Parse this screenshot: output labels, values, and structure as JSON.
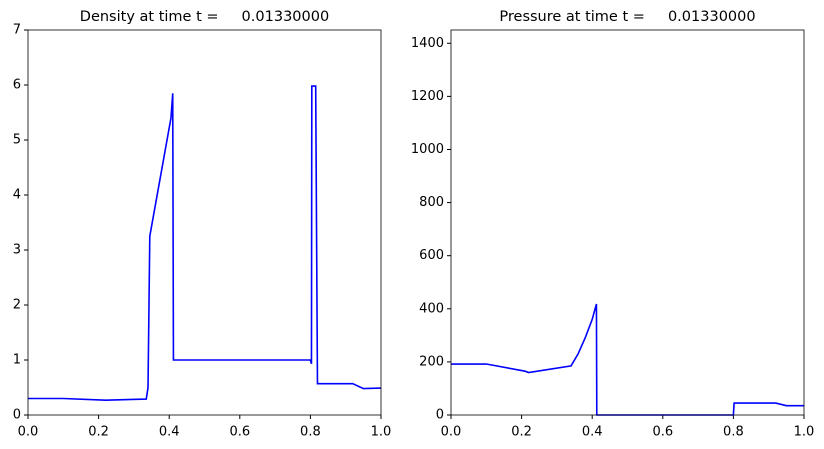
{
  "chart_data": [
    {
      "type": "line",
      "title": "Density at time t =     0.01330000",
      "x": [
        0,
        0.1,
        0.22,
        0.335,
        0.34,
        0.345,
        0.405,
        0.41,
        0.412,
        0.8,
        0.803,
        0.804,
        0.813,
        0.815,
        0.82,
        0.92,
        0.95,
        1.0
      ],
      "series": [
        {
          "name": "Density",
          "color": "#0000ff",
          "values": [
            0.3,
            0.3,
            0.27,
            0.29,
            0.5,
            3.25,
            5.4,
            5.85,
            1.0,
            1.0,
            0.93,
            5.98,
            5.98,
            5.98,
            0.57,
            0.57,
            0.48,
            0.49
          ]
        }
      ],
      "xlim": [
        0,
        1
      ],
      "ylim": [
        0,
        7
      ],
      "xticks": [
        {
          "value": 0,
          "label": "0.0"
        },
        0.2,
        0.4,
        0.6,
        0.8,
        {
          "value": 1,
          "label": "1.0"
        }
      ],
      "yticks": [
        0,
        1,
        2,
        3,
        4,
        5,
        6,
        7
      ]
    },
    {
      "type": "line",
      "title": "Pressure at time t =     0.01330000",
      "x": [
        0,
        0.1,
        0.21,
        0.22,
        0.34,
        0.36,
        0.38,
        0.4,
        0.412,
        0.413,
        0.8,
        0.802,
        0.92,
        0.95,
        1.0
      ],
      "series": [
        {
          "name": "Pressure",
          "color": "#0000ff",
          "values": [
            192,
            192,
            165,
            160,
            185,
            230,
            290,
            360,
            418,
            0,
            0,
            45,
            45,
            35,
            35
          ]
        }
      ],
      "xlim": [
        0,
        1
      ],
      "ylim": [
        0,
        1450
      ],
      "xticks": [
        {
          "value": 0,
          "label": "0.0"
        },
        0.2,
        0.4,
        0.6,
        0.8,
        {
          "value": 1,
          "label": "1.0"
        }
      ],
      "yticks": [
        0,
        200,
        400,
        600,
        800,
        1000,
        1200,
        1400
      ]
    }
  ]
}
